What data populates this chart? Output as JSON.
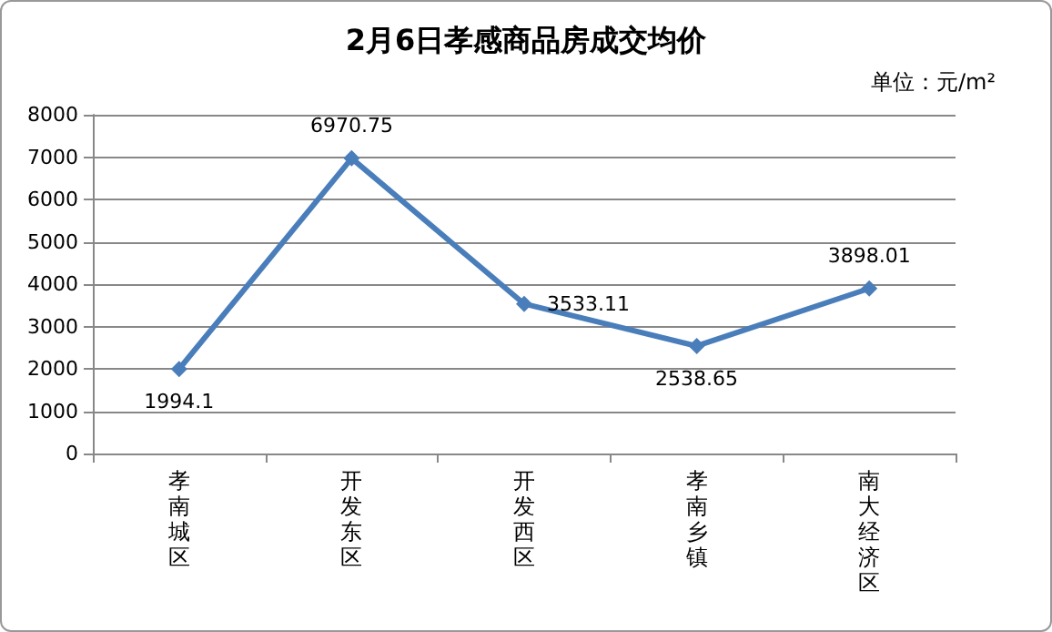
{
  "chart_data": {
    "type": "line",
    "title": "2月6日孝感商品房成交均价",
    "annotations": [
      "单位：元/m²"
    ],
    "categories": [
      "孝南城区",
      "开发东区",
      "开发西区",
      "孝南乡镇",
      "南大经济区"
    ],
    "series": [
      {
        "color": "#4a7ebb",
        "values": [
          1994.1,
          6970.75,
          3533.11,
          2538.65,
          3898.01
        ]
      }
    ],
    "ylim": [
      0,
      8000
    ],
    "yticks": [
      0,
      1000,
      2000,
      3000,
      4000,
      5000,
      6000,
      7000,
      8000
    ],
    "grid": "y",
    "marker": "diamond",
    "line_style": "solid",
    "data_labels": true
  }
}
